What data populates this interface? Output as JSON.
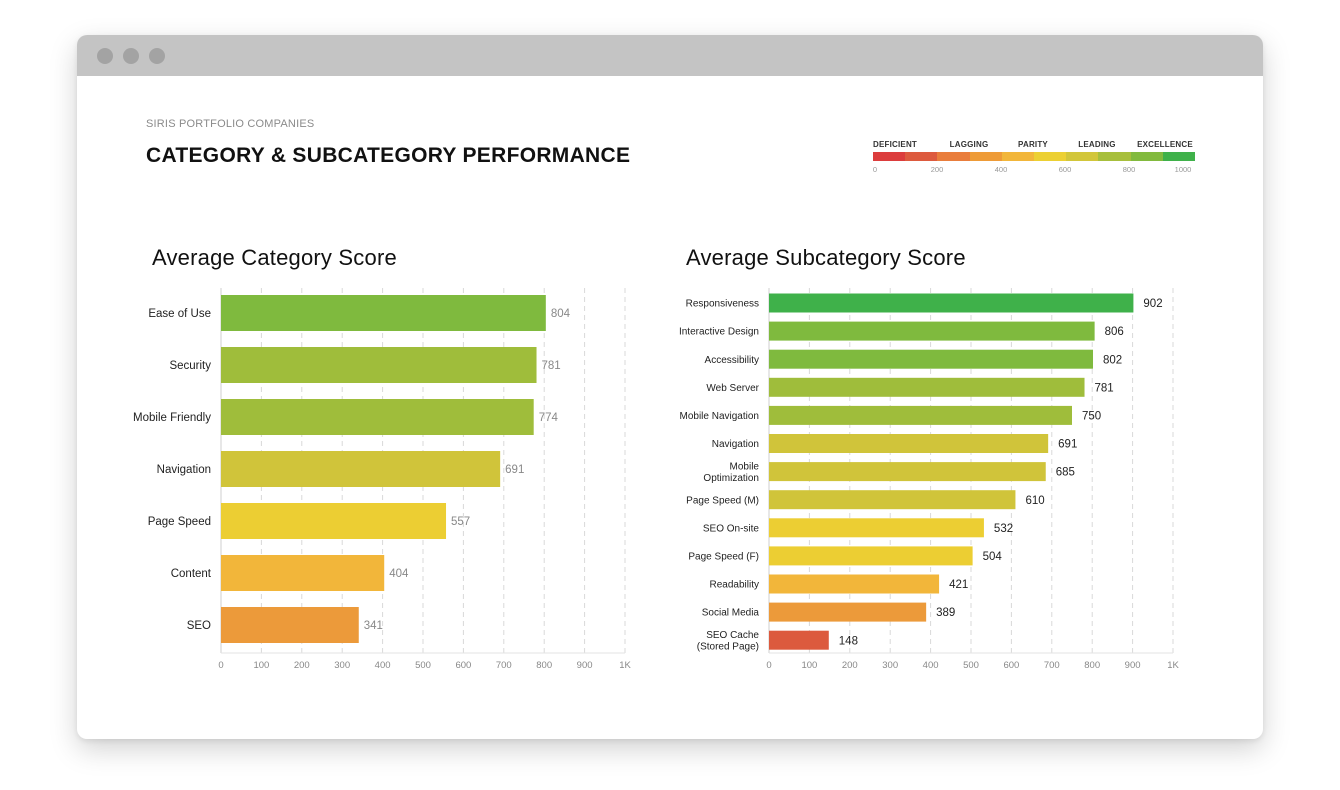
{
  "window": {
    "controls": [
      "close-dot",
      "minimize-dot",
      "zoom-dot"
    ]
  },
  "header": {
    "subtitle": "SIRIS PORTFOLIO COMPANIES",
    "title": "CATEGORY & SUBCATEGORY PERFORMANCE"
  },
  "legend": {
    "labels": [
      "DEFICIENT",
      "LAGGING",
      "PARITY",
      "LEADING",
      "EXCELLENCE"
    ],
    "ticks": [
      "0",
      "200",
      "400",
      "600",
      "800",
      "1000"
    ],
    "segments": [
      "#dc3d3d",
      "#dd5a3e",
      "#e97d3c",
      "#ee9b37",
      "#f2b63a",
      "#ecd033",
      "#d2c63a",
      "#a7bf3c",
      "#82ba3e",
      "#3fb14a"
    ]
  },
  "chart_data": [
    {
      "type": "bar",
      "orientation": "horizontal",
      "title": "Average Category Score",
      "categories": [
        "Ease of Use",
        "Security",
        "Mobile Friendly",
        "Navigation",
        "Page Speed",
        "Content",
        "SEO"
      ],
      "values": [
        804,
        781,
        774,
        691,
        557,
        404,
        341
      ],
      "value_labels": [
        "804",
        "781",
        "774",
        "691",
        "557",
        "404",
        "341"
      ],
      "colors": [
        "#7fba3e",
        "#9fbd3b",
        "#9fbd3b",
        "#d0c43a",
        "#ecce33",
        "#f2b63a",
        "#ec9a3a"
      ],
      "xlim": [
        0,
        1000
      ],
      "xticks": [
        "0",
        "100",
        "200",
        "300",
        "400",
        "500",
        "600",
        "700",
        "800",
        "900",
        "1K"
      ],
      "grid": true
    },
    {
      "type": "bar",
      "orientation": "horizontal",
      "title": "Average Subcategory Score",
      "categories": [
        "Responsiveness",
        "Interactive Design",
        "Accessibility",
        "Web Server",
        "Mobile Navigation",
        "Navigation",
        "Mobile\nOptimization",
        "Page Speed (M)",
        "SEO On-site",
        "Page Speed (F)",
        "Readability",
        "Social Media",
        "SEO Cache\n(Stored Page)"
      ],
      "values": [
        902,
        806,
        802,
        781,
        750,
        691,
        685,
        610,
        532,
        504,
        421,
        389,
        148
      ],
      "value_labels": [
        "902",
        "806",
        "802",
        "781",
        "750",
        "691",
        "685",
        "610",
        "532",
        "504",
        "421",
        "389",
        "148"
      ],
      "colors": [
        "#3fb14a",
        "#7fba3e",
        "#7fba3e",
        "#9fbd3b",
        "#9fbd3b",
        "#d0c43a",
        "#d0c43a",
        "#d0c43a",
        "#ecce33",
        "#ecce33",
        "#f2b63a",
        "#ec9a3a",
        "#dc5a3e"
      ],
      "xlim": [
        0,
        1000
      ],
      "xticks": [
        "0",
        "100",
        "200",
        "300",
        "400",
        "500",
        "600",
        "700",
        "800",
        "900",
        "1K"
      ],
      "grid": true
    }
  ]
}
